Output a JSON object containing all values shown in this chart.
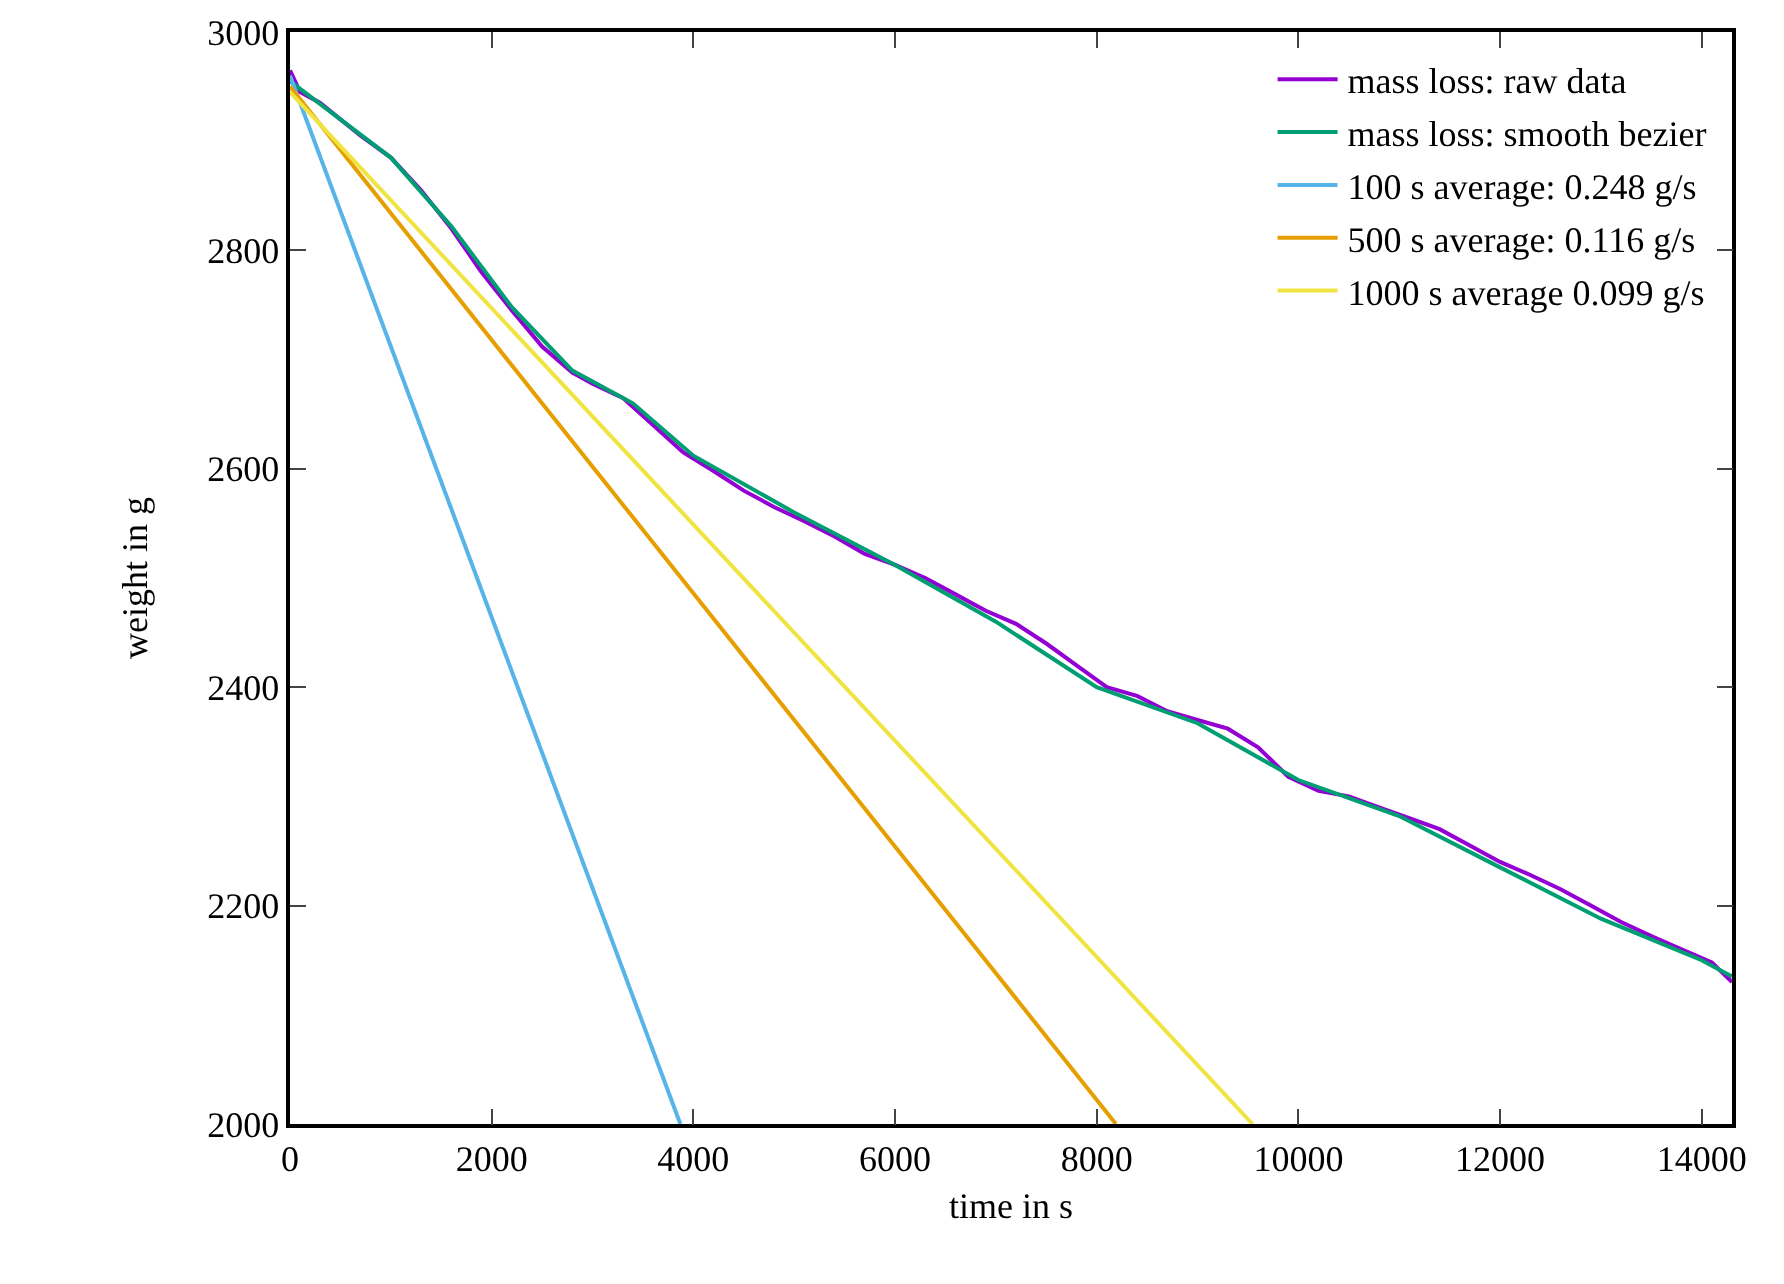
{
  "chart_data": {
    "type": "line",
    "xlabel": "time in s",
    "ylabel": "weight in g",
    "xlim": [
      0,
      14300
    ],
    "ylim": [
      2000,
      3000
    ],
    "xticks": [
      0,
      2000,
      4000,
      6000,
      8000,
      10000,
      12000,
      14000
    ],
    "yticks": [
      2000,
      2200,
      2400,
      2600,
      2800,
      3000
    ],
    "grid": false,
    "legend": "top right",
    "marker": "none",
    "line_style": "solid",
    "series": [
      {
        "name": "mass loss: raw data",
        "color": "#9400d3",
        "x": [
          0,
          100,
          300,
          500,
          700,
          1000,
          1300,
          1600,
          1900,
          2200,
          2500,
          2800,
          3000,
          3300,
          3600,
          3900,
          4200,
          4500,
          4800,
          5100,
          5400,
          5700,
          6000,
          6300,
          6600,
          6900,
          7200,
          7500,
          7800,
          8100,
          8400,
          8700,
          9000,
          9300,
          9600,
          9900,
          10200,
          10500,
          10800,
          11100,
          11400,
          11700,
          12000,
          12300,
          12600,
          12900,
          13200,
          13500,
          13800,
          14100,
          14300
        ],
        "values": [
          2965,
          2945,
          2935,
          2920,
          2905,
          2885,
          2855,
          2820,
          2780,
          2745,
          2712,
          2688,
          2678,
          2665,
          2640,
          2615,
          2598,
          2580,
          2565,
          2552,
          2538,
          2522,
          2512,
          2500,
          2485,
          2470,
          2458,
          2440,
          2420,
          2400,
          2392,
          2378,
          2370,
          2362,
          2345,
          2318,
          2305,
          2300,
          2290,
          2280,
          2270,
          2255,
          2240,
          2228,
          2215,
          2200,
          2185,
          2172,
          2160,
          2148,
          2130
        ]
      },
      {
        "name": "mass loss: smooth bezier",
        "color": "#009e73",
        "x": [
          0,
          500,
          1000,
          1600,
          2200,
          2800,
          3400,
          4000,
          5000,
          6000,
          7000,
          8000,
          9000,
          10000,
          11000,
          12000,
          13000,
          14000,
          14300
        ],
        "values": [
          2955,
          2920,
          2885,
          2822,
          2748,
          2690,
          2660,
          2612,
          2560,
          2512,
          2460,
          2400,
          2367,
          2315,
          2282,
          2235,
          2188,
          2150,
          2135
        ]
      },
      {
        "name": "100 s average: 0.248 g/s",
        "color": "#56b4e9",
        "x": [
          0,
          3871
        ],
        "values": [
          2960,
          2000
        ]
      },
      {
        "name": "500 s average: 0.116 g/s",
        "color": "#e69f00",
        "x": [
          0,
          8190
        ],
        "values": [
          2950,
          2000
        ]
      },
      {
        "name": "1000 s average 0.099 g/s",
        "color": "#f0e442",
        "x": [
          0,
          9545
        ],
        "values": [
          2945,
          2000
        ]
      }
    ]
  }
}
